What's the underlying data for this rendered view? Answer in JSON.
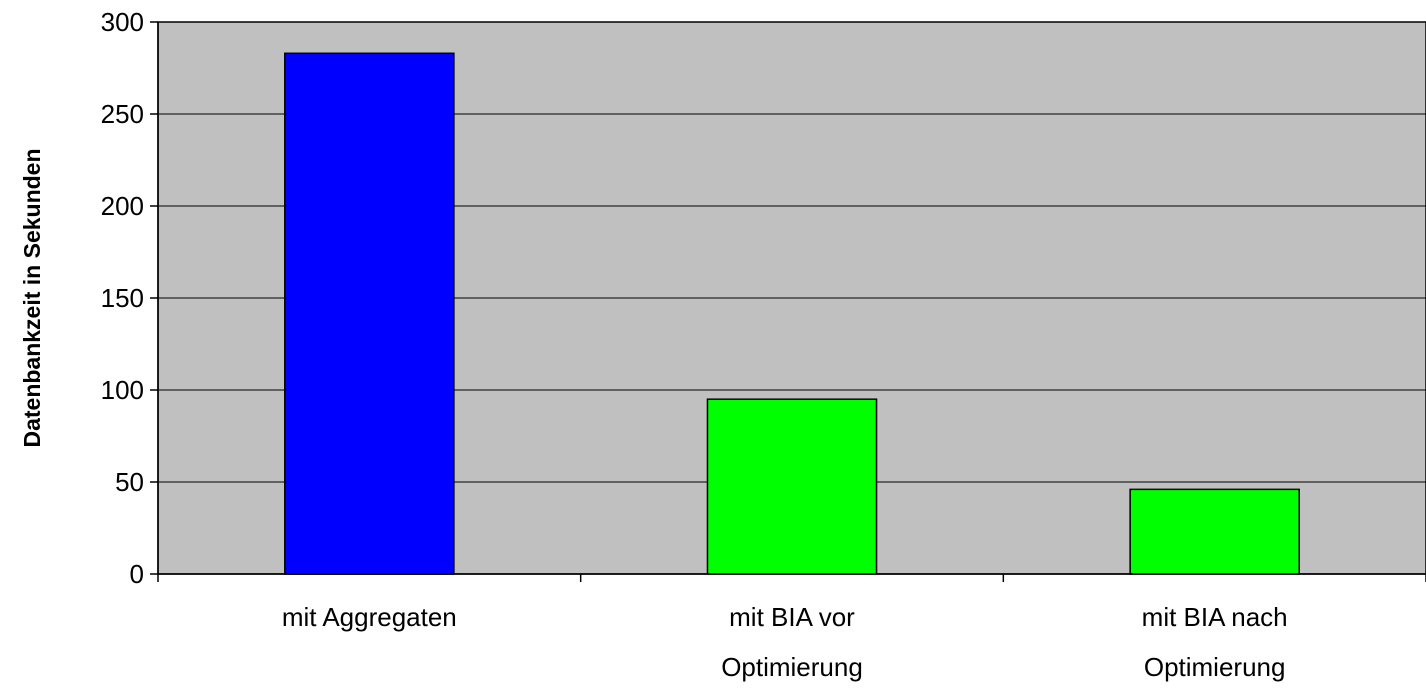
{
  "chart_data": {
    "type": "bar",
    "title": "",
    "xlabel": "",
    "ylabel": "Datenbankzeit in Sekunden",
    "categories": [
      [
        "mit Aggregaten"
      ],
      [
        "mit BIA vor",
        "Optimierung"
      ],
      [
        "mit BIA nach",
        "Optimierung"
      ]
    ],
    "values": [
      283,
      95,
      46
    ],
    "bar_colors": [
      "#0000ff",
      "#00ff00",
      "#00ff00"
    ],
    "ylim": [
      0,
      300
    ],
    "yticks": [
      0,
      50,
      100,
      150,
      200,
      250,
      300
    ],
    "grid": true,
    "legend": "none",
    "plot_background": "#c0c0c0"
  }
}
